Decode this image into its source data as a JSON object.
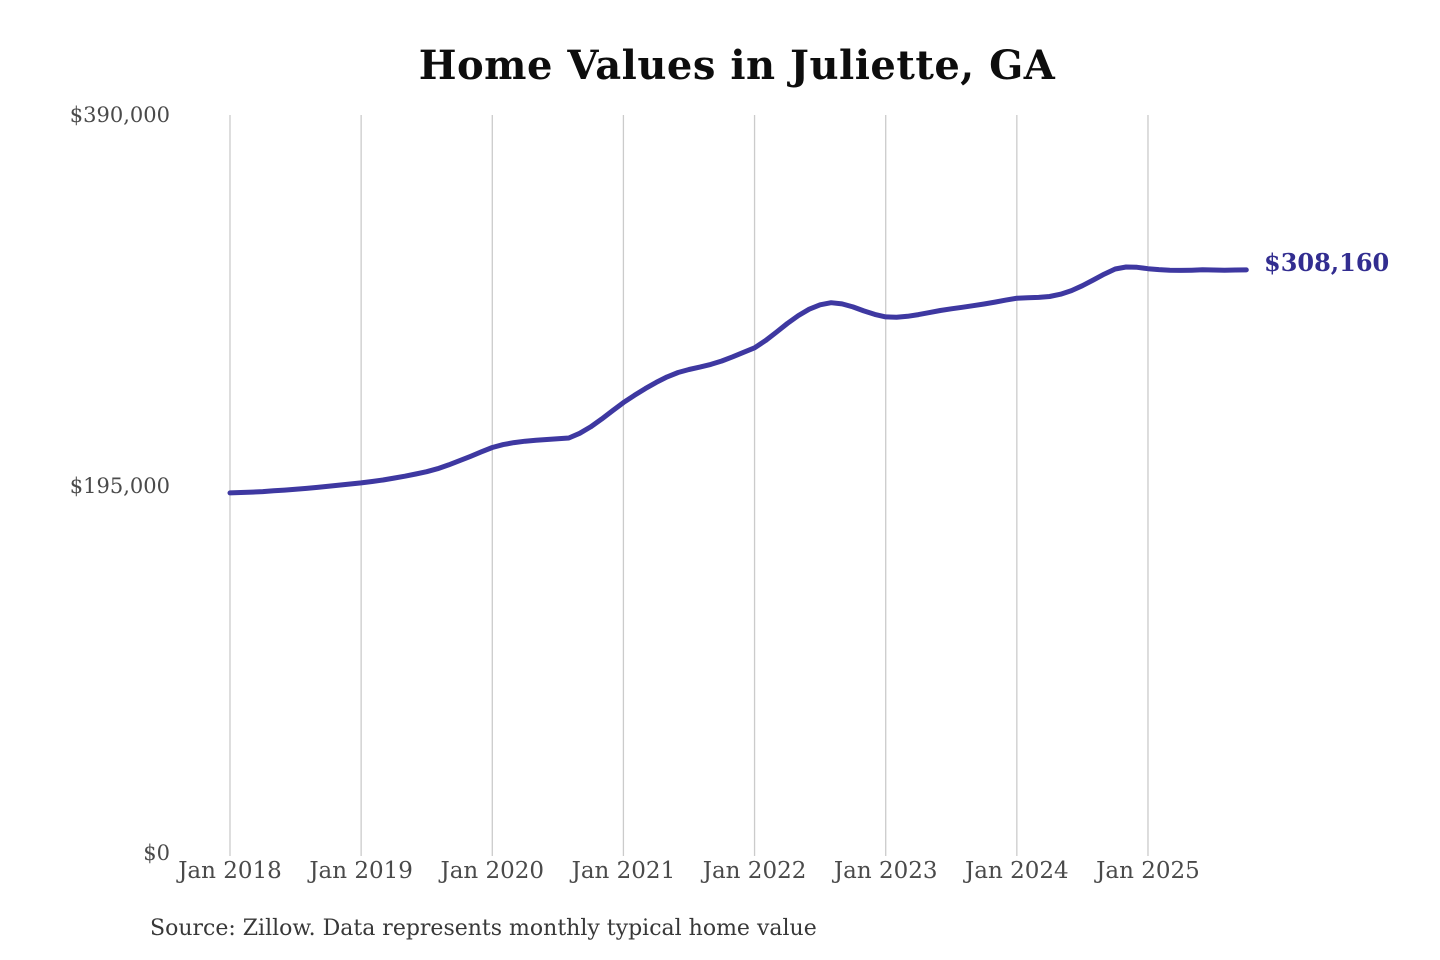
{
  "chart_data": {
    "type": "line",
    "title": "Home Values in Juliette, GA",
    "source": "Source: Zillow. Data represents monthly typical home value",
    "xlabel": "",
    "ylabel": "",
    "ylim": [
      0,
      390000
    ],
    "y_tick_labels": [
      "$390,000",
      "$195,000",
      "$0"
    ],
    "y_tick_values": [
      390000,
      195000,
      0
    ],
    "x_tick_labels": [
      "Jan 2018",
      "Jan 2019",
      "Jan 2020",
      "Jan 2021",
      "Jan 2022",
      "Jan 2023",
      "Jan 2024",
      "Jan 2025"
    ],
    "x_range": [
      "Jan 2018",
      "Oct 2025"
    ],
    "grid": "vertical-yearly",
    "legend": "none",
    "annotation": {
      "text": "$308,160",
      "value": 308160,
      "position": "line-end"
    },
    "colors": {
      "line": "#3e38a1",
      "annotation_text": "#322d90",
      "grid": "#cbcbcb",
      "tick_text": "#4a4a4a",
      "title_text": "#0d0d0d",
      "source_text": "#383838"
    },
    "series": [
      {
        "name": "Typical home value",
        "color": "#3e38a1",
        "start_month": "2018-01",
        "end_month": "2025-10",
        "monthly_values": [
          190300,
          190500,
          190700,
          191000,
          191400,
          191800,
          192200,
          192700,
          193200,
          193800,
          194400,
          195000,
          195600,
          196300,
          197100,
          198100,
          199100,
          200300,
          201500,
          203100,
          205100,
          207300,
          209600,
          212000,
          214300,
          215800,
          216900,
          217600,
          218100,
          218500,
          218900,
          219300,
          221800,
          225200,
          229300,
          233700,
          238000,
          241800,
          245400,
          248700,
          251600,
          253900,
          255500,
          256800,
          258200,
          260000,
          262200,
          264600,
          267000,
          270800,
          275200,
          279800,
          284000,
          287400,
          289700,
          290800,
          290200,
          288600,
          286500,
          284600,
          283300,
          283100,
          283600,
          284500,
          285600,
          286700,
          287600,
          288400,
          289200,
          290100,
          291100,
          292200,
          293200,
          293400,
          293600,
          294100,
          295300,
          297200,
          299800,
          302800,
          305900,
          308600,
          309700,
          309500,
          308800,
          308300,
          308000,
          307900,
          308000,
          308200,
          308100,
          308000,
          308100,
          308160
        ]
      }
    ]
  }
}
